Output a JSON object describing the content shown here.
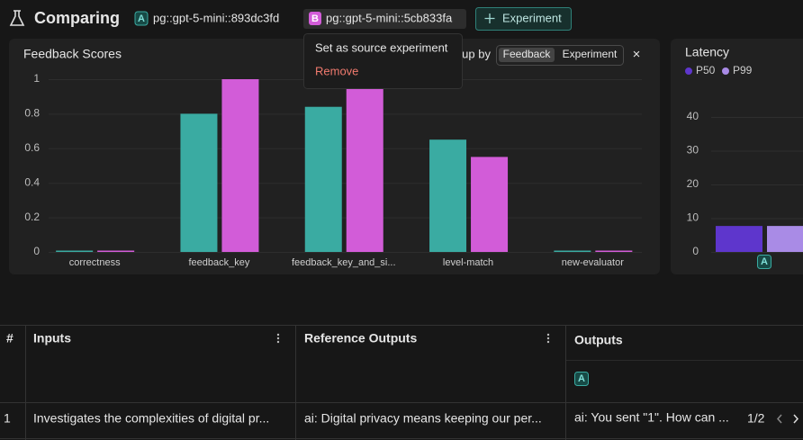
{
  "header": {
    "title": "Comparing",
    "experiments": [
      {
        "badge": "A",
        "name": "pg::gpt-5-mini::893dc3fd"
      },
      {
        "badge": "B",
        "name": "pg::gpt-5-mini::5cb833fa"
      }
    ],
    "add_button": "Experiment"
  },
  "dropdown": {
    "items": [
      "Set as source experiment",
      "Remove"
    ]
  },
  "chart_data": [
    {
      "type": "bar",
      "title": "Feedback Scores",
      "group_by_label": "Group by",
      "group_by_options": [
        "Feedback",
        "Experiment"
      ],
      "close": "×",
      "categories": [
        "correctness",
        "feedback_key",
        "feedback_key_and_si...",
        "level-match",
        "new-evaluator"
      ],
      "series": [
        {
          "color": "#3aaba2",
          "values": [
            0,
            0.8,
            0.84,
            0.65,
            0
          ]
        },
        {
          "color": "#d25cd8",
          "values": [
            0,
            1,
            0.95,
            0.55,
            0
          ]
        }
      ],
      "ylim": [
        0,
        1
      ],
      "yticks": [
        0,
        0.2,
        0.4,
        0.6,
        0.8,
        1
      ],
      "grid": true
    },
    {
      "type": "bar",
      "title": "Latency",
      "categories": [
        "A"
      ],
      "series": [
        {
          "name": "P50",
          "color": "#5e36cc",
          "values": [
            7.7
          ]
        },
        {
          "name": "P99",
          "color": "#a98be6",
          "values": [
            7.7
          ]
        }
      ],
      "ylim": [
        0,
        40
      ],
      "yticks": [
        0,
        10,
        20,
        30,
        40
      ],
      "grid": true
    }
  ],
  "table": {
    "columns": [
      "#",
      "Inputs",
      "Reference Outputs",
      "Outputs"
    ],
    "output_badge": "A",
    "rows": [
      [
        "1",
        "Investigates the complexities of digital pr...",
        "ai: Digital privacy means keeping our per...",
        "ai: You sent \"1\". How can ..."
      ]
    ],
    "pagination": "1/2"
  }
}
